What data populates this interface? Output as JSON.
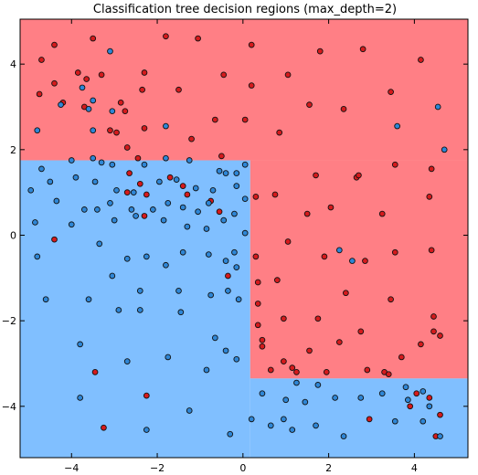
{
  "chart_data": {
    "type": "scatter",
    "title": "Classification tree decision regions (max_depth=2)",
    "xlabel": "",
    "ylabel": "",
    "xlim": [
      -5.2,
      5.25
    ],
    "ylim": [
      -5.2,
      5.05
    ],
    "xticks": [
      -4,
      -2,
      0,
      2,
      4
    ],
    "yticks": [
      -4,
      -2,
      0,
      2,
      4
    ],
    "grid": false,
    "legend": "none",
    "colors": {
      "region_red": "#ff7f85",
      "region_blue": "#80bfff",
      "point_red": "#d51a1c",
      "point_blue": "#2e86d6",
      "point_edge": "#111111",
      "axes": "#000000"
    },
    "regions": [
      {
        "class": "red",
        "x": [
          -5.2,
          5.25
        ],
        "y": [
          1.75,
          5.05
        ]
      },
      {
        "class": "blue",
        "x": [
          -5.2,
          0.17
        ],
        "y": [
          -5.2,
          1.75
        ]
      },
      {
        "class": "red",
        "x": [
          0.17,
          5.25
        ],
        "y": [
          -3.35,
          1.75
        ]
      },
      {
        "class": "blue",
        "x": [
          0.17,
          5.25
        ],
        "y": [
          -5.2,
          -3.35
        ]
      }
    ],
    "series": [
      {
        "class": "red",
        "points": [
          [
            -4.7,
            4.1
          ],
          [
            -4.4,
            4.45
          ],
          [
            -3.5,
            4.6
          ],
          [
            -1.8,
            4.65
          ],
          [
            -1.05,
            4.6
          ],
          [
            0.2,
            4.45
          ],
          [
            1.8,
            4.3
          ],
          [
            2.8,
            4.35
          ],
          [
            4.15,
            4.1
          ],
          [
            -4.75,
            3.3
          ],
          [
            -4.4,
            3.55
          ],
          [
            -3.85,
            3.8
          ],
          [
            -3.65,
            3.65
          ],
          [
            -3.3,
            3.75
          ],
          [
            -2.3,
            3.8
          ],
          [
            -1.5,
            3.4
          ],
          [
            -0.45,
            3.75
          ],
          [
            0.2,
            3.5
          ],
          [
            1.05,
            3.75
          ],
          [
            -4.2,
            3.1
          ],
          [
            -3.7,
            3.0
          ],
          [
            -2.85,
            3.1
          ],
          [
            -2.35,
            3.4
          ],
          [
            -2.75,
            2.9
          ],
          [
            -3.1,
            2.45
          ],
          [
            -2.95,
            2.4
          ],
          [
            -2.3,
            2.5
          ],
          [
            -1.2,
            2.25
          ],
          [
            -0.65,
            2.7
          ],
          [
            0.05,
            2.7
          ],
          [
            0.85,
            2.4
          ],
          [
            1.55,
            3.05
          ],
          [
            2.35,
            2.95
          ],
          [
            3.45,
            3.35
          ],
          [
            -2.7,
            2.05
          ],
          [
            -2.45,
            1.8
          ],
          [
            -0.5,
            1.85
          ],
          [
            -2.65,
            1.45
          ],
          [
            -1.7,
            1.35
          ],
          [
            -2.4,
            1.2
          ],
          [
            -1.4,
            1.15
          ],
          [
            -2.7,
            1.0
          ],
          [
            -2.25,
            0.95
          ],
          [
            -1.3,
            0.95
          ],
          [
            -0.75,
            0.8
          ],
          [
            -2.3,
            0.45
          ],
          [
            -4.4,
            -0.1
          ],
          [
            -0.55,
            0.55
          ],
          [
            0.3,
            0.9
          ],
          [
            0.75,
            0.95
          ],
          [
            1.5,
            0.5
          ],
          [
            2.05,
            0.65
          ],
          [
            3.25,
            0.5
          ],
          [
            4.35,
            0.9
          ],
          [
            1.7,
            1.4
          ],
          [
            2.65,
            1.35
          ],
          [
            3.55,
            1.65
          ],
          [
            4.4,
            1.55
          ],
          [
            1.05,
            -0.15
          ],
          [
            1.9,
            -0.5
          ],
          [
            2.85,
            -0.6
          ],
          [
            3.55,
            -0.4
          ],
          [
            4.4,
            -0.35
          ],
          [
            -0.35,
            -0.95
          ],
          [
            0.3,
            -0.5
          ],
          [
            0.35,
            -1.1
          ],
          [
            0.8,
            -1.05
          ],
          [
            2.4,
            -1.35
          ],
          [
            3.45,
            -1.5
          ],
          [
            4.45,
            -1.9
          ],
          [
            0.35,
            -1.6
          ],
          [
            0.35,
            -2.1
          ],
          [
            0.95,
            -1.95
          ],
          [
            1.75,
            -1.95
          ],
          [
            2.75,
            -2.25
          ],
          [
            4.6,
            -2.35
          ],
          [
            0.45,
            -2.45
          ],
          [
            0.45,
            -2.6
          ],
          [
            0.95,
            -2.95
          ],
          [
            1.15,
            -3.1
          ],
          [
            1.55,
            -2.7
          ],
          [
            2.25,
            -2.5
          ],
          [
            3.7,
            -2.85
          ],
          [
            4.15,
            -2.55
          ],
          [
            4.45,
            -2.25
          ],
          [
            0.65,
            -3.15
          ],
          [
            1.25,
            -3.2
          ],
          [
            1.95,
            -3.2
          ],
          [
            2.9,
            -3.15
          ],
          [
            3.3,
            -3.2
          ],
          [
            3.4,
            -3.25
          ],
          [
            4.35,
            -3.8
          ],
          [
            4.05,
            -3.7
          ],
          [
            4.6,
            -4.2
          ],
          [
            -3.45,
            -3.2
          ],
          [
            -2.25,
            -3.75
          ],
          [
            -3.25,
            -4.5
          ],
          [
            2.95,
            -4.3
          ],
          [
            3.9,
            -4.0
          ],
          [
            4.5,
            -4.7
          ],
          [
            2.7,
            1.4
          ]
        ]
      },
      {
        "class": "blue",
        "points": [
          [
            -3.1,
            4.3
          ],
          [
            -3.75,
            3.45
          ],
          [
            -3.6,
            2.95
          ],
          [
            -3.5,
            3.15
          ],
          [
            -3.05,
            2.9
          ],
          [
            -4.25,
            3.05
          ],
          [
            -3.5,
            2.45
          ],
          [
            -1.8,
            2.55
          ],
          [
            3.6,
            2.55
          ],
          [
            4.55,
            3.0
          ],
          [
            4.7,
            2.0
          ],
          [
            -4.8,
            2.45
          ],
          [
            -4.0,
            1.75
          ],
          [
            -3.3,
            1.7
          ],
          [
            -3.5,
            1.8
          ],
          [
            -3.05,
            1.65
          ],
          [
            -2.3,
            1.65
          ],
          [
            -1.8,
            1.8
          ],
          [
            -1.25,
            1.75
          ],
          [
            -0.55,
            1.5
          ],
          [
            -0.15,
            1.45
          ],
          [
            0.05,
            1.65
          ],
          [
            -4.7,
            1.55
          ],
          [
            -4.5,
            1.25
          ],
          [
            -3.9,
            1.35
          ],
          [
            -3.45,
            1.25
          ],
          [
            -2.95,
            1.05
          ],
          [
            -2.55,
            1.0
          ],
          [
            -1.95,
            1.25
          ],
          [
            -1.55,
            1.3
          ],
          [
            -1.1,
            1.1
          ],
          [
            -0.7,
            1.05
          ],
          [
            -0.4,
            1.45
          ],
          [
            -0.15,
            1.15
          ],
          [
            -4.95,
            1.05
          ],
          [
            -4.35,
            0.8
          ],
          [
            -3.7,
            0.6
          ],
          [
            -3.4,
            0.6
          ],
          [
            -3.1,
            0.75
          ],
          [
            -2.6,
            0.6
          ],
          [
            -2.1,
            0.6
          ],
          [
            -1.75,
            0.75
          ],
          [
            -1.4,
            0.65
          ],
          [
            -1.05,
            0.55
          ],
          [
            -0.45,
            0.35
          ],
          [
            -0.8,
            0.75
          ],
          [
            -0.2,
            0.5
          ],
          [
            0.05,
            0.85
          ],
          [
            -4.85,
            0.3
          ],
          [
            -4.0,
            0.25
          ],
          [
            -3.0,
            0.35
          ],
          [
            -2.5,
            0.45
          ],
          [
            -1.85,
            0.35
          ],
          [
            -1.3,
            0.2
          ],
          [
            -0.85,
            0.15
          ],
          [
            0.05,
            0.05
          ],
          [
            -4.8,
            -0.5
          ],
          [
            -3.35,
            -0.2
          ],
          [
            -2.7,
            -0.55
          ],
          [
            -2.25,
            -0.5
          ],
          [
            -1.8,
            -0.7
          ],
          [
            -1.4,
            -0.4
          ],
          [
            -0.8,
            -0.45
          ],
          [
            -0.4,
            -0.6
          ],
          [
            -0.2,
            -0.4
          ],
          [
            -4.6,
            -1.5
          ],
          [
            -3.6,
            -1.5
          ],
          [
            -3.05,
            -0.95
          ],
          [
            -2.9,
            -1.75
          ],
          [
            -2.4,
            -1.3
          ],
          [
            -2.4,
            -1.75
          ],
          [
            -1.5,
            -1.3
          ],
          [
            -0.75,
            -1.4
          ],
          [
            -0.35,
            -1.3
          ],
          [
            -0.15,
            -0.75
          ],
          [
            -0.1,
            -1.5
          ],
          [
            -1.45,
            -1.8
          ],
          [
            -0.65,
            -2.4
          ],
          [
            -0.4,
            -2.7
          ],
          [
            -0.15,
            -2.9
          ],
          [
            -3.8,
            -2.55
          ],
          [
            -2.7,
            -2.95
          ],
          [
            -1.75,
            -2.85
          ],
          [
            -0.85,
            -3.15
          ],
          [
            -3.8,
            -3.8
          ],
          [
            -1.25,
            -4.1
          ],
          [
            -2.25,
            -4.55
          ],
          [
            -0.3,
            -4.65
          ],
          [
            0.2,
            -4.3
          ],
          [
            0.65,
            -4.45
          ],
          [
            0.95,
            -4.3
          ],
          [
            1.0,
            -3.85
          ],
          [
            1.15,
            -4.55
          ],
          [
            1.45,
            -3.9
          ],
          [
            1.7,
            -4.45
          ],
          [
            0.45,
            -3.7
          ],
          [
            1.25,
            -3.45
          ],
          [
            1.75,
            -3.5
          ],
          [
            2.15,
            -3.8
          ],
          [
            2.35,
            -4.7
          ],
          [
            2.75,
            -3.8
          ],
          [
            3.25,
            -3.7
          ],
          [
            3.55,
            -4.35
          ],
          [
            3.8,
            -3.55
          ],
          [
            3.85,
            -3.85
          ],
          [
            4.2,
            -3.65
          ],
          [
            4.2,
            -4.35
          ],
          [
            4.35,
            -4.0
          ],
          [
            4.6,
            -4.7
          ],
          [
            2.25,
            -0.35
          ],
          [
            2.55,
            -0.6
          ]
        ]
      }
    ]
  }
}
